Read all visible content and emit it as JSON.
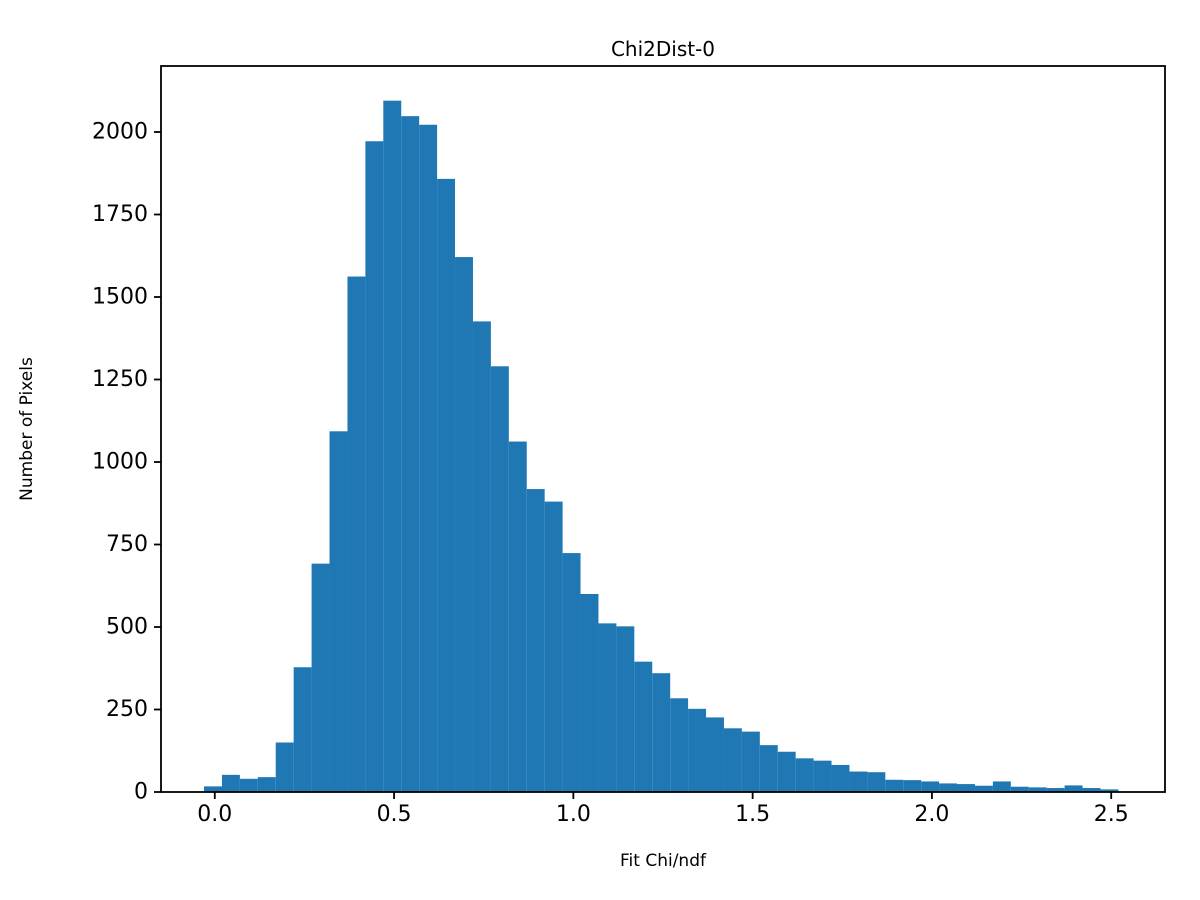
{
  "figure": {
    "background_color": "#ffffff",
    "text_color": "#000000"
  },
  "chart_data": {
    "type": "bar",
    "subtype": "histogram",
    "title": "Chi2Dist-0",
    "xlabel": "Fit Chi/ndf",
    "ylabel": "Number of Pixels",
    "bar_color": "#1f77b4",
    "grid": false,
    "legend": null,
    "xlim": [
      -0.15,
      2.65
    ],
    "ylim": [
      0,
      2200
    ],
    "xticks": [
      0.0,
      0.5,
      1.0,
      1.5,
      2.0,
      2.5
    ],
    "yticks": [
      0,
      250,
      500,
      750,
      1000,
      1250,
      1500,
      1750,
      2000
    ],
    "bin_start": -0.03,
    "bin_width": 0.05,
    "counts": [
      17,
      52,
      40,
      45,
      150,
      378,
      692,
      1093,
      1562,
      1972,
      2095,
      2048,
      2022,
      1858,
      1621,
      1426,
      1290,
      1062,
      918,
      880,
      724,
      600,
      511,
      502,
      395,
      360,
      284,
      252,
      226,
      193,
      183,
      142,
      122,
      102,
      95,
      82,
      62,
      60,
      37,
      36,
      32,
      26,
      24,
      19,
      32,
      16,
      14,
      12,
      20,
      12,
      8
    ]
  }
}
